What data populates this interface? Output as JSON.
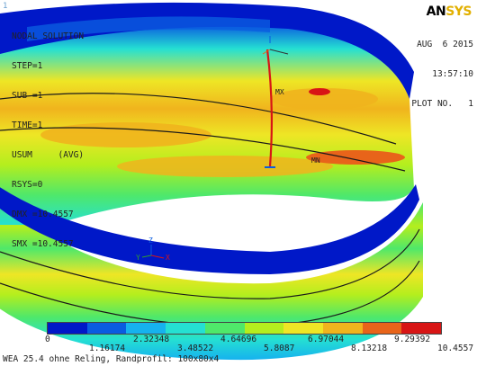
{
  "window": {
    "number": "1"
  },
  "logo": {
    "main": "AN",
    "accent": "SYS"
  },
  "left_info": [
    "NODAL SOLUTION",
    "STEP=1",
    "SUB =1",
    "TIME=1",
    "USUM     (AVG)",
    "RSYS=0",
    "DMX =10.4557",
    "SMX =10.4557"
  ],
  "right_info": [
    "AUG  6 2015",
    "13:57:10",
    "PLOT NO.   1"
  ],
  "markers": {
    "min": "MN",
    "max": "MX",
    "axis_x": "X",
    "axis_y": "Y",
    "axis_z": "Z"
  },
  "colorbar": {
    "colors": [
      "#0018c8",
      "#0a5de0",
      "#16b2ee",
      "#25e0d2",
      "#4fe86a",
      "#b4ee1e",
      "#eee625",
      "#f0b41d",
      "#e8641a",
      "#d81515"
    ],
    "labels": [
      "0",
      "1.16174",
      "2.32348",
      "3.48522",
      "4.64696",
      "5.8087",
      "6.97044",
      "8.13218",
      "9.29392",
      "10.4557"
    ]
  },
  "subtitle": "WEA 25.4 ohne Reling, Randprofil: 100x80x4"
}
